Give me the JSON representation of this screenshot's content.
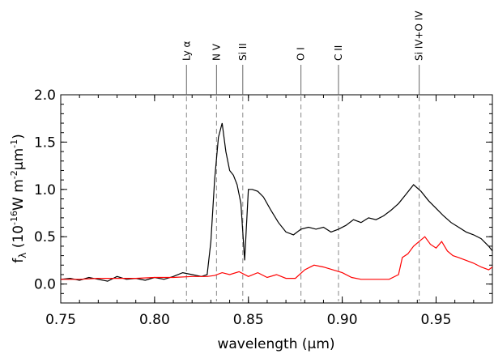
{
  "chart_data": {
    "type": "line",
    "title": "",
    "xlabel": "wavelength (μm)",
    "ylabel": "f_λ (10^-16 W m^-2 μm^-1)",
    "xlim": [
      0.75,
      0.98
    ],
    "ylim": [
      -0.2,
      2.0
    ],
    "xticks": [
      0.75,
      0.8,
      0.85,
      0.9,
      0.95
    ],
    "xtick_labels": [
      "0.75",
      "0.80",
      "0.85",
      "0.90",
      "0.95"
    ],
    "yticks": [
      0.0,
      0.5,
      1.0,
      1.5,
      2.0
    ],
    "ytick_labels": [
      "0.0",
      "0.5",
      "1.0",
      "1.5",
      "2.0"
    ],
    "grid": false,
    "lines": [
      {
        "label": "Ly α",
        "x": 0.817
      },
      {
        "label": "N V",
        "x": 0.833
      },
      {
        "label": "Si II",
        "x": 0.847
      },
      {
        "label": "O I",
        "x": 0.878
      },
      {
        "label": "C II",
        "x": 0.898
      },
      {
        "label": "Si IV+O IV",
        "x": 0.941
      }
    ],
    "series": [
      {
        "color": "#000000",
        "x": [
          0.75,
          0.755,
          0.76,
          0.765,
          0.77,
          0.775,
          0.78,
          0.785,
          0.79,
          0.795,
          0.8,
          0.805,
          0.81,
          0.815,
          0.82,
          0.825,
          0.828,
          0.83,
          0.832,
          0.834,
          0.836,
          0.838,
          0.84,
          0.842,
          0.844,
          0.846,
          0.848,
          0.85,
          0.852,
          0.855,
          0.858,
          0.862,
          0.866,
          0.87,
          0.874,
          0.878,
          0.882,
          0.886,
          0.89,
          0.894,
          0.898,
          0.902,
          0.906,
          0.91,
          0.914,
          0.918,
          0.922,
          0.926,
          0.93,
          0.934,
          0.938,
          0.942,
          0.946,
          0.95,
          0.954,
          0.958,
          0.962,
          0.966,
          0.97,
          0.974,
          0.978,
          0.98
        ],
        "y": [
          0.05,
          0.06,
          0.04,
          0.07,
          0.05,
          0.03,
          0.08,
          0.05,
          0.06,
          0.04,
          0.07,
          0.05,
          0.08,
          0.12,
          0.1,
          0.08,
          0.1,
          0.45,
          1.1,
          1.55,
          1.7,
          1.4,
          1.2,
          1.15,
          1.05,
          0.85,
          0.25,
          1.0,
          1.0,
          0.98,
          0.92,
          0.78,
          0.65,
          0.55,
          0.52,
          0.58,
          0.6,
          0.58,
          0.6,
          0.55,
          0.58,
          0.62,
          0.68,
          0.65,
          0.7,
          0.68,
          0.72,
          0.78,
          0.85,
          0.95,
          1.05,
          0.98,
          0.88,
          0.8,
          0.72,
          0.65,
          0.6,
          0.55,
          0.52,
          0.48,
          0.4,
          0.35
        ]
      },
      {
        "color": "#ff0000",
        "x": [
          0.75,
          0.76,
          0.77,
          0.78,
          0.79,
          0.8,
          0.81,
          0.82,
          0.828,
          0.832,
          0.836,
          0.84,
          0.845,
          0.85,
          0.855,
          0.86,
          0.865,
          0.87,
          0.875,
          0.88,
          0.885,
          0.89,
          0.895,
          0.9,
          0.905,
          0.91,
          0.915,
          0.92,
          0.925,
          0.93,
          0.932,
          0.935,
          0.938,
          0.941,
          0.944,
          0.947,
          0.95,
          0.953,
          0.956,
          0.959,
          0.962,
          0.966,
          0.97,
          0.974,
          0.978,
          0.98
        ],
        "y": [
          0.05,
          0.05,
          0.06,
          0.06,
          0.06,
          0.07,
          0.07,
          0.08,
          0.08,
          0.09,
          0.12,
          0.1,
          0.13,
          0.08,
          0.12,
          0.07,
          0.1,
          0.06,
          0.06,
          0.15,
          0.2,
          0.18,
          0.15,
          0.12,
          0.07,
          0.05,
          0.05,
          0.05,
          0.05,
          0.1,
          0.28,
          0.32,
          0.4,
          0.45,
          0.5,
          0.42,
          0.38,
          0.45,
          0.35,
          0.3,
          0.28,
          0.25,
          0.22,
          0.18,
          0.15,
          0.18
        ]
      }
    ]
  }
}
